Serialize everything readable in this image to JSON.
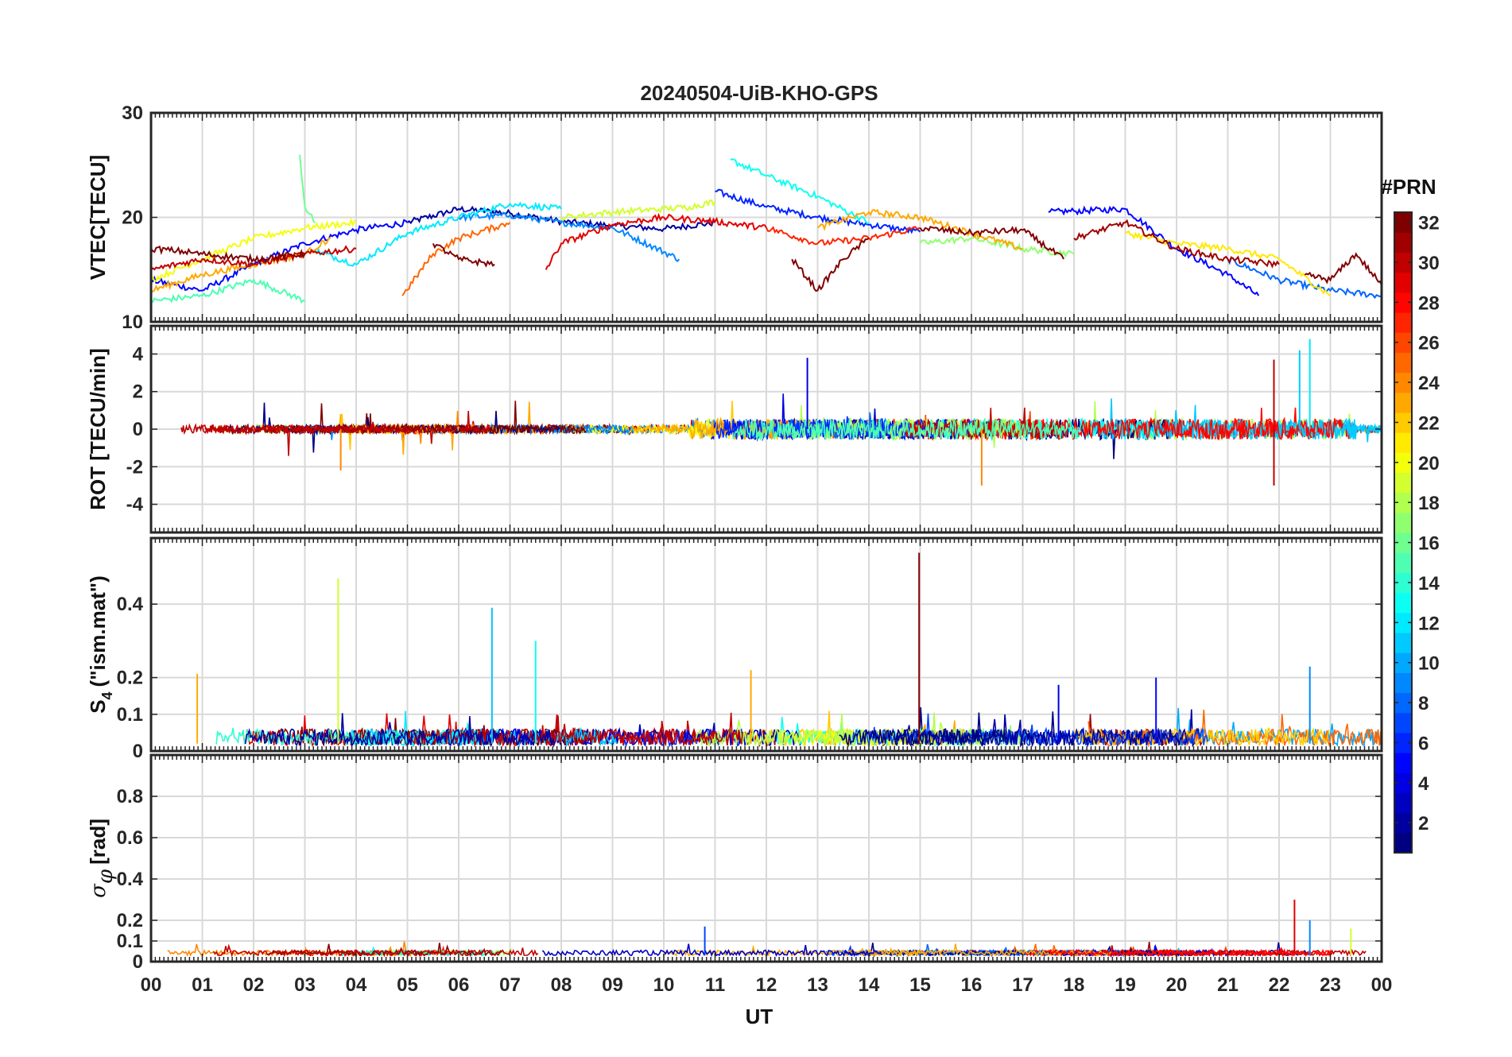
{
  "chart_data": {
    "type": "line",
    "title": "20240504-UiB-KHO-GPS",
    "xlabel": "UT",
    "x_tick_labels": [
      "00",
      "01",
      "02",
      "03",
      "04",
      "05",
      "06",
      "07",
      "08",
      "09",
      "10",
      "11",
      "12",
      "13",
      "14",
      "15",
      "16",
      "17",
      "18",
      "19",
      "20",
      "21",
      "22",
      "23",
      "00"
    ],
    "xlim": [
      0,
      24
    ],
    "grid": true,
    "colorbar": {
      "label": "#PRN",
      "range": [
        1,
        32
      ],
      "ticks": [
        2,
        4,
        6,
        8,
        10,
        12,
        14,
        16,
        18,
        20,
        22,
        24,
        26,
        28,
        30,
        32
      ],
      "tick_labels": [
        "2",
        "4",
        "6",
        "8",
        "10",
        "12",
        "14",
        "16",
        "18",
        "20",
        "22",
        "24",
        "26",
        "28",
        "30",
        "32"
      ],
      "colormap": "jet",
      "placement": "right"
    },
    "panels": [
      {
        "id": "vtec",
        "ylabel": "VTEC[TECU]",
        "ylim": [
          10,
          30
        ],
        "yticks": [
          10,
          20,
          30
        ],
        "ytick_labels": [
          "10",
          "20",
          "30"
        ],
        "series": [
          {
            "prn": 2,
            "x": [
              5.0,
              6.0,
              7.0,
              8.0,
              9.0,
              10.0,
              11.0
            ],
            "y": [
              19.5,
              20.8,
              20.4,
              19.6,
              19.2,
              18.9,
              19.5
            ]
          },
          {
            "prn": 5,
            "x": [
              0.0,
              1.0,
              2.0,
              3.0,
              4.0,
              5.0
            ],
            "y": [
              14.0,
              13.0,
              15.5,
              17.5,
              18.8,
              19.5
            ]
          },
          {
            "prn": 5,
            "x": [
              17.5,
              18.0,
              19.0,
              20.0,
              21.0,
              21.6
            ],
            "y": [
              20.5,
              20.6,
              20.8,
              17.0,
              14.5,
              12.5
            ]
          },
          {
            "prn": 6,
            "x": [
              11.0,
              12.0,
              13.0,
              14.0,
              15.0
            ],
            "y": [
              22.5,
              21.0,
              20.0,
              19.3,
              18.6
            ]
          },
          {
            "prn": 8,
            "x": [
              21.0,
              22.0,
              23.0,
              24.0
            ],
            "y": [
              16.0,
              14.0,
              13.0,
              12.5
            ]
          },
          {
            "prn": 9,
            "x": [
              6.0,
              7.0,
              8.0,
              9.0,
              10.3
            ],
            "y": [
              20.0,
              20.2,
              19.5,
              19.0,
              16.0
            ]
          },
          {
            "prn": 12,
            "x": [
              3.2,
              4.0,
              5.0,
              6.0,
              7.0,
              8.0
            ],
            "y": [
              16.8,
              15.5,
              18.5,
              20.0,
              21.3,
              20.8
            ]
          },
          {
            "prn": 13,
            "x": [
              11.3,
              12.0,
              13.0,
              14.0
            ],
            "y": [
              25.5,
              24.0,
              22.0,
              19.5
            ]
          },
          {
            "prn": 15,
            "x": [
              0.0,
              1.0,
              2.0,
              3.0
            ],
            "y": [
              12.0,
              12.5,
              14.0,
              12.0
            ]
          },
          {
            "prn": 16,
            "x": [
              2.9,
              3.0,
              3.2
            ],
            "y": [
              26.0,
              21.0,
              19.5
            ]
          },
          {
            "prn": 17,
            "x": [
              15.0,
              16.0,
              17.0,
              18.0
            ],
            "y": [
              17.5,
              18.0,
              17.0,
              16.5
            ]
          },
          {
            "prn": 19,
            "x": [
              8.0,
              9.0,
              10.0,
              10.5,
              11.0
            ],
            "y": [
              20.0,
              20.5,
              20.8,
              21.0,
              21.5
            ]
          },
          {
            "prn": 20,
            "x": [
              0.0,
              1.0,
              2.0,
              3.0,
              4.0
            ],
            "y": [
              14.0,
              16.0,
              18.0,
              19.0,
              19.5
            ]
          },
          {
            "prn": 21,
            "x": [
              19.0,
              20.0,
              21.0,
              22.0,
              23.0
            ],
            "y": [
              18.5,
              17.5,
              17.0,
              16.0,
              12.5
            ]
          },
          {
            "prn": 23,
            "x": [
              0.0,
              1.0,
              2.0,
              3.0,
              3.5
            ],
            "y": [
              13.0,
              14.5,
              15.5,
              16.5,
              18.0
            ]
          },
          {
            "prn": 23,
            "x": [
              13.0,
              14.0,
              15.0,
              16.0,
              17.0
            ],
            "y": [
              19.0,
              20.5,
              20.0,
              18.5,
              17.0
            ]
          },
          {
            "prn": 25,
            "x": [
              4.9,
              5.5,
              6.0,
              7.0
            ],
            "y": [
              12.5,
              16.5,
              18.0,
              19.5
            ]
          },
          {
            "prn": 27,
            "x": [
              12.0,
              13.0,
              14.0,
              15.0
            ],
            "y": [
              19.0,
              17.5,
              18.0,
              19.0
            ]
          },
          {
            "prn": 29,
            "x": [
              7.7,
              8.0,
              9.0,
              10.0,
              11.0,
              12.0
            ],
            "y": [
              15.0,
              17.5,
              19.3,
              20.0,
              19.6,
              19.0
            ]
          },
          {
            "prn": 30,
            "x": [
              0.0,
              1.0,
              2.0,
              3.0,
              4.0
            ],
            "y": [
              15.0,
              16.0,
              15.5,
              16.5,
              17.0
            ]
          },
          {
            "prn": 31,
            "x": [
              18.0,
              19.0,
              20.0,
              21.0,
              22.0
            ],
            "y": [
              18.0,
              19.5,
              17.0,
              16.0,
              15.5
            ]
          },
          {
            "prn": 32,
            "x": [
              0.0,
              0.5,
              1.0,
              2.0,
              3.0
            ],
            "y": [
              17.0,
              16.8,
              16.5,
              16.0,
              16.5
            ]
          },
          {
            "prn": 32,
            "x": [
              5.5,
              6.0,
              6.7
            ],
            "y": [
              17.5,
              16.0,
              15.5
            ]
          },
          {
            "prn": 32,
            "x": [
              12.5,
              13.0,
              13.5,
              14.0
            ],
            "y": [
              16.0,
              13.0,
              16.0,
              18.0
            ]
          },
          {
            "prn": 32,
            "x": [
              15.0,
              16.0,
              17.0,
              17.8
            ],
            "y": [
              19.0,
              18.5,
              18.8,
              16.0
            ]
          },
          {
            "prn": 32,
            "x": [
              22.5,
              23.0,
              23.5,
              24.0
            ],
            "y": [
              14.5,
              14.0,
              16.5,
              13.5
            ]
          }
        ]
      },
      {
        "id": "rot",
        "ylabel": "ROT [TECU/min]",
        "ylim": [
          -5.5,
          5.5
        ],
        "yticks": [
          -4,
          -2,
          0,
          2,
          4
        ],
        "ytick_labels": [
          "-4",
          "-2",
          "0",
          "2",
          "4"
        ],
        "series": [
          {
            "prn": 4,
            "x": [
              12.8,
              12.8
            ],
            "y": [
              0,
              3.8
            ]
          },
          {
            "prn": 12,
            "x": [
              22.6,
              22.6
            ],
            "y": [
              0,
              4.8
            ]
          },
          {
            "prn": 11,
            "x": [
              22.4,
              22.4
            ],
            "y": [
              0,
              4.2
            ]
          },
          {
            "prn": 30,
            "x": [
              21.9,
              21.9
            ],
            "y": [
              -3.0,
              3.7
            ]
          },
          {
            "prn": 24,
            "x": [
              16.2,
              16.2
            ],
            "y": [
              0,
              -3.0
            ]
          },
          {
            "prn": 24,
            "x": [
              3.7,
              3.7
            ],
            "y": [
              0,
              -2.2
            ]
          }
        ]
      },
      {
        "id": "s4",
        "ylabel": "S4 (\"ism.mat\")",
        "ylabel_main": "S",
        "ylabel_sub": "4",
        "ylabel_rest": "(\"ism.mat\")",
        "ylim": [
          0,
          0.58
        ],
        "yticks": [
          0,
          0.1,
          0.2,
          0.4
        ],
        "ytick_labels": [
          "0",
          "0.1",
          "0.2",
          "0.4"
        ],
        "series": [
          {
            "prn": 19,
            "x": [
              3.65,
              3.65
            ],
            "y": [
              0.02,
              0.47
            ]
          },
          {
            "prn": 11,
            "x": [
              6.65,
              6.65
            ],
            "y": [
              0.02,
              0.39
            ]
          },
          {
            "prn": 13,
            "x": [
              7.5,
              7.5
            ],
            "y": [
              0.02,
              0.3
            ]
          },
          {
            "prn": 32,
            "x": [
              14.98,
              14.98
            ],
            "y": [
              0.02,
              0.54
            ]
          },
          {
            "prn": 5,
            "x": [
              19.6,
              19.6
            ],
            "y": [
              0.02,
              0.2
            ]
          },
          {
            "prn": 4,
            "x": [
              17.7,
              17.7
            ],
            "y": [
              0.02,
              0.18
            ]
          },
          {
            "prn": 9,
            "x": [
              22.6,
              22.6
            ],
            "y": [
              0.02,
              0.23
            ]
          },
          {
            "prn": 23,
            "x": [
              11.7,
              11.7
            ],
            "y": [
              0.02,
              0.22
            ]
          },
          {
            "prn": 23,
            "x": [
              0.9,
              0.9
            ],
            "y": [
              0.02,
              0.21
            ]
          }
        ]
      },
      {
        "id": "sigphi",
        "ylabel": "σφ[rad]",
        "ylabel_main": "σ",
        "ylabel_sub": "φ",
        "ylabel_rest": "[rad]",
        "ylim": [
          0,
          1.0
        ],
        "yticks": [
          0,
          0.1,
          0.2,
          0.4,
          0.6,
          0.8
        ],
        "ytick_labels": [
          "0",
          "0.1",
          "0.2",
          "0.4",
          "0.6",
          "0.8"
        ],
        "series": [
          {
            "prn": 29,
            "x": [
              22.3,
              22.3
            ],
            "y": [
              0.03,
              0.3
            ]
          },
          {
            "prn": 9,
            "x": [
              22.6,
              22.6
            ],
            "y": [
              0.03,
              0.2
            ]
          },
          {
            "prn": 7,
            "x": [
              10.8,
              10.8
            ],
            "y": [
              0.03,
              0.17
            ]
          },
          {
            "prn": 19,
            "x": [
              23.4,
              23.4
            ],
            "y": [
              0.03,
              0.16
            ]
          }
        ]
      }
    ]
  }
}
